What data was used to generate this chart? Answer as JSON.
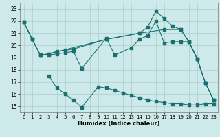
{
  "xlabel": "Humidex (Indice chaleur)",
  "bg_color": "#cee9e9",
  "line_color": "#1a7070",
  "grid_color": "#aacfcf",
  "xlim": [
    -0.5,
    23.5
  ],
  "ylim": [
    14.5,
    23.5
  ],
  "xticks": [
    0,
    1,
    2,
    3,
    4,
    5,
    6,
    7,
    8,
    9,
    10,
    11,
    12,
    13,
    14,
    15,
    16,
    17,
    18,
    19,
    20,
    21,
    22,
    23
  ],
  "yticks": [
    15,
    16,
    17,
    18,
    19,
    20,
    21,
    22,
    23
  ],
  "line1_x": [
    0,
    1,
    2,
    3,
    4,
    5,
    6,
    7,
    10,
    11,
    13,
    14,
    15,
    16,
    17,
    18,
    19,
    20,
    21,
    22,
    23
  ],
  "line1_y": [
    21.9,
    20.5,
    19.2,
    19.2,
    19.3,
    19.4,
    19.5,
    18.1,
    20.6,
    19.2,
    19.8,
    20.5,
    20.8,
    22.0,
    20.2,
    20.3,
    20.3,
    20.3,
    18.9,
    16.9,
    15.5
  ],
  "line2_x": [
    0,
    1,
    2,
    3,
    4,
    5,
    6,
    10,
    14,
    15,
    16,
    17,
    18,
    19,
    20,
    21,
    22,
    23
  ],
  "line2_y": [
    21.9,
    20.5,
    19.2,
    19.3,
    19.5,
    19.6,
    19.7,
    20.5,
    21.0,
    21.5,
    22.8,
    22.2,
    21.6,
    21.3,
    20.3,
    18.9,
    16.9,
    15.5
  ],
  "line3_x": [
    0,
    1,
    2,
    3,
    10,
    14,
    17,
    19,
    20,
    21,
    22,
    23
  ],
  "line3_y": [
    21.9,
    20.5,
    19.2,
    19.3,
    20.5,
    21.0,
    21.3,
    21.3,
    20.3,
    18.9,
    16.9,
    15.5
  ],
  "line4_x": [
    3,
    4,
    5,
    6,
    7,
    9,
    10,
    11,
    12,
    13,
    14,
    15,
    16,
    17,
    18,
    19,
    20,
    21,
    22,
    23
  ],
  "line4_y": [
    17.5,
    16.5,
    16.0,
    15.5,
    14.9,
    16.6,
    16.5,
    16.3,
    16.1,
    15.9,
    15.7,
    15.5,
    15.4,
    15.3,
    15.2,
    15.2,
    15.1,
    15.1,
    15.2,
    15.2
  ]
}
